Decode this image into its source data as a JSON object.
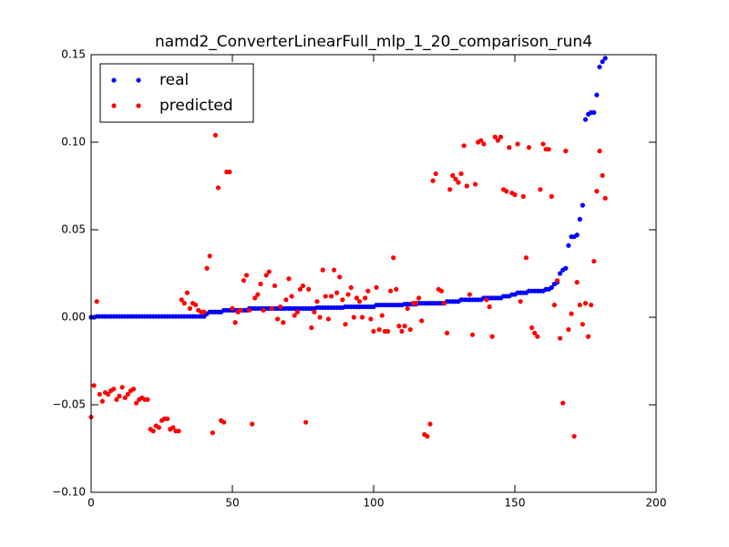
{
  "chart_data": {
    "type": "scatter",
    "title": "namd2_ConverterLinearFull_mlp_1_20_comparison_run4",
    "xlim": [
      0,
      200
    ],
    "xticks": [
      0,
      50,
      100,
      150,
      200
    ],
    "ylim": [
      -0.1,
      0.15
    ],
    "yticks": [
      {
        "value": -0.1,
        "label": "−0.10"
      },
      {
        "value": -0.05,
        "label": "−0.05"
      },
      {
        "value": 0,
        "label": "0.00"
      },
      {
        "value": 0.05,
        "label": "0.05"
      },
      {
        "value": 0.1,
        "label": "0.10"
      },
      {
        "value": 0.15,
        "label": "0.15"
      }
    ],
    "legend": "upper left",
    "x": [
      0,
      1,
      2,
      3,
      4,
      5,
      6,
      7,
      8,
      9,
      10,
      11,
      12,
      13,
      14,
      15,
      16,
      17,
      18,
      19,
      20,
      21,
      22,
      23,
      24,
      25,
      26,
      27,
      28,
      29,
      30,
      31,
      32,
      33,
      34,
      35,
      36,
      37,
      38,
      39,
      40,
      41,
      42,
      43,
      44,
      45,
      46,
      47,
      48,
      49,
      50,
      51,
      52,
      53,
      54,
      55,
      56,
      57,
      58,
      59,
      60,
      61,
      62,
      63,
      64,
      65,
      66,
      67,
      68,
      69,
      70,
      71,
      72,
      73,
      74,
      75,
      76,
      77,
      78,
      79,
      80,
      81,
      82,
      83,
      84,
      85,
      86,
      87,
      88,
      89,
      90,
      91,
      92,
      93,
      94,
      95,
      96,
      97,
      98,
      99,
      100,
      101,
      102,
      103,
      104,
      105,
      106,
      107,
      108,
      109,
      110,
      111,
      112,
      113,
      114,
      115,
      116,
      117,
      118,
      119,
      120,
      121,
      122,
      123,
      124,
      125,
      126,
      127,
      128,
      129,
      130,
      131,
      132,
      133,
      134,
      135,
      136,
      137,
      138,
      139,
      140,
      141,
      142,
      143,
      144,
      145,
      146,
      147,
      148,
      149,
      150,
      151,
      152,
      153,
      154,
      155,
      156,
      157,
      158,
      159,
      160,
      161,
      162,
      163,
      164,
      165,
      166,
      167,
      168,
      169,
      170,
      171,
      172,
      173,
      174,
      175,
      176,
      177,
      178,
      179,
      180,
      181,
      182
    ],
    "series": [
      {
        "name": "real",
        "color": "#0000ff",
        "values": [
          0,
          0,
          0.0005,
          0.0005,
          0.0005,
          0.0005,
          0.0005,
          0.0005,
          0.0005,
          0.0005,
          0.0005,
          0.0005,
          0.0005,
          0.0005,
          0.0005,
          0.0005,
          0.0005,
          0.0005,
          0.0005,
          0.0005,
          0.0005,
          0.0005,
          0.0005,
          0.0005,
          0.0005,
          0.0005,
          0.0005,
          0.0005,
          0.0005,
          0.0005,
          0.0005,
          0.0005,
          0.0005,
          0.0005,
          0.0005,
          0.0005,
          0.0005,
          0.0005,
          0.0005,
          0.0005,
          0.0005,
          0.002,
          0.003,
          0.003,
          0.003,
          0.003,
          0.003,
          0.004,
          0.004,
          0.004,
          0.004,
          0.004,
          0.004,
          0.004,
          0.004,
          0.004,
          0.005,
          0.005,
          0.005,
          0.005,
          0.005,
          0.005,
          0.005,
          0.005,
          0.005,
          0.005,
          0.005,
          0.005,
          0.005,
          0.005,
          0.005,
          0.005,
          0.005,
          0.005,
          0.005,
          0.005,
          0.005,
          0.005,
          0.005,
          0.005,
          0.0055,
          0.0055,
          0.0055,
          0.0055,
          0.0055,
          0.0055,
          0.0055,
          0.0055,
          0.0055,
          0.0055,
          0.006,
          0.006,
          0.006,
          0.006,
          0.006,
          0.006,
          0.006,
          0.006,
          0.006,
          0.006,
          0.006,
          0.007,
          0.007,
          0.007,
          0.007,
          0.007,
          0.007,
          0.007,
          0.007,
          0.007,
          0.007,
          0.0075,
          0.0075,
          0.0075,
          0.0075,
          0.0075,
          0.008,
          0.008,
          0.008,
          0.008,
          0.008,
          0.008,
          0.008,
          0.008,
          0.008,
          0.008,
          0.009,
          0.009,
          0.009,
          0.009,
          0.009,
          0.01,
          0.01,
          0.01,
          0.01,
          0.01,
          0.01,
          0.01,
          0.01,
          0.011,
          0.011,
          0.011,
          0.011,
          0.011,
          0.011,
          0.011,
          0.012,
          0.012,
          0.012,
          0.013,
          0.013,
          0.014,
          0.014,
          0.014,
          0.014,
          0.015,
          0.015,
          0.015,
          0.015,
          0.015,
          0.015,
          0.016,
          0.016,
          0.017,
          0.019,
          0.02,
          0.025,
          0.027,
          0.028,
          0.041,
          0.046,
          0.046,
          0.047,
          0.056,
          0.064,
          0.113,
          0.116,
          0.117,
          0.117,
          0.127,
          0.143,
          0.146,
          0.148
        ]
      },
      {
        "name": "predicted",
        "color": "#ff0000",
        "values": [
          -0.057,
          -0.039,
          0.009,
          -0.044,
          -0.048,
          -0.043,
          -0.044,
          -0.042,
          -0.041,
          -0.047,
          -0.045,
          -0.04,
          -0.046,
          -0.044,
          -0.042,
          -0.041,
          -0.049,
          -0.047,
          -0.046,
          -0.047,
          -0.047,
          -0.064,
          -0.065,
          -0.062,
          -0.063,
          -0.059,
          -0.058,
          -0.058,
          -0.064,
          -0.063,
          -0.065,
          -0.065,
          0.01,
          0.008,
          0.014,
          0.005,
          0.008,
          0.007,
          0.004,
          0.003,
          0.003,
          0.028,
          0.035,
          -0.066,
          0.104,
          0.074,
          -0.059,
          -0.06,
          0.083,
          0.083,
          0.005,
          -0.003,
          0.003,
          0.004,
          0.021,
          0.024,
          0.004,
          -0.061,
          0.011,
          0.013,
          0.019,
          0.004,
          0.024,
          0.026,
          0.005,
          0.018,
          -0.001,
          0.006,
          -0.003,
          0.01,
          0.022,
          0.012,
          0.001,
          0.003,
          0.016,
          0.018,
          -0.06,
          0.016,
          -0.006,
          0.003,
          0.009,
          0,
          0.027,
          0.012,
          -0.001,
          0.012,
          0.027,
          0.014,
          0.023,
          0.01,
          -0.004,
          0.013,
          0.017,
          0,
          0.011,
          0.009,
          0,
          0.011,
          0.015,
          -0.001,
          -0.008,
          0.017,
          -0.007,
          0.001,
          -0.008,
          -0.008,
          0.015,
          0.034,
          0.016,
          -0.005,
          -0.008,
          -0.005,
          0.005,
          -0.007,
          0.008,
          0.008,
          0.011,
          -0.002,
          -0.067,
          -0.068,
          -0.061,
          0.078,
          0.082,
          0.016,
          0.015,
          0.008,
          -0.009,
          0.073,
          0.081,
          0.079,
          0.077,
          0.082,
          0.098,
          0.075,
          0.013,
          -0.01,
          0.076,
          0.1,
          0.101,
          0.099,
          0.01,
          0.006,
          -0.011,
          0.103,
          0.101,
          0.103,
          0.073,
          0.072,
          0.097,
          0.071,
          0.07,
          0.099,
          0.009,
          0.069,
          0.034,
          0.097,
          -0.006,
          -0.009,
          -0.011,
          0.073,
          0.099,
          0.096,
          0.096,
          0.069,
          0.007,
          0.021,
          -0.012,
          -0.049,
          0.095,
          -0.007,
          0.002,
          -0.068,
          0.02,
          0.007,
          -0.004,
          0.008,
          -0.011,
          0.007,
          0.032,
          0.072,
          0.095,
          0.081,
          0.068
        ]
      }
    ]
  }
}
